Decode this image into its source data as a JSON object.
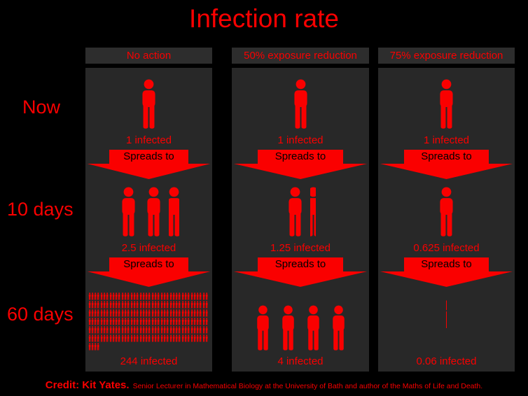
{
  "title": "Infection rate",
  "accent_color": "#fa0000",
  "panel_color": "#282828",
  "spread_label": "Spreads to",
  "rows": [
    "Now",
    "10 days",
    "60 days"
  ],
  "columns": [
    {
      "header": "No action",
      "now": {
        "count": 1,
        "label": "1 infected"
      },
      "day10": {
        "count": 2.5,
        "label": "2.5 infected"
      },
      "day60": {
        "count": 244,
        "label": "244 infected"
      }
    },
    {
      "header": "50% exposure reduction",
      "now": {
        "count": 1,
        "label": "1 infected"
      },
      "day10": {
        "count": 1.25,
        "label": "1.25 infected"
      },
      "day60": {
        "count": 4,
        "label": "4 infected"
      }
    },
    {
      "header": "75% exposure reduction",
      "now": {
        "count": 1,
        "label": "1 infected"
      },
      "day10": {
        "count": 0.625,
        "label": "0.625 infected"
      },
      "day60": {
        "count": 0.06,
        "label": "0.06 infected"
      }
    }
  ],
  "credit": {
    "prefix": "Credit: Kit Yates.",
    "suffix": "Senior Lecturer in Mathematical Biology at the University of Bath and author of the Maths of Life and Death."
  }
}
